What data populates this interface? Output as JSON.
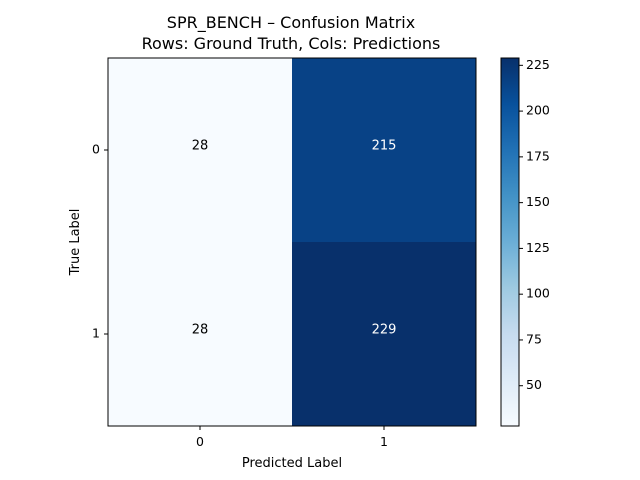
{
  "chart_data": {
    "type": "heatmap",
    "title": "SPR_BENCH – Confusion Matrix",
    "subtitle": "Rows: Ground Truth, Cols: Predictions",
    "xlabel": "Predicted Label",
    "ylabel": "True Label",
    "x_categories": [
      "0",
      "1"
    ],
    "y_categories": [
      "0",
      "1"
    ],
    "values": [
      [
        28,
        215
      ],
      [
        28,
        229
      ]
    ],
    "colormap": "Blues",
    "colorbar": {
      "range": [
        28,
        229
      ],
      "ticks": [
        50,
        75,
        100,
        125,
        150,
        175,
        200,
        225
      ]
    },
    "grid": false
  }
}
